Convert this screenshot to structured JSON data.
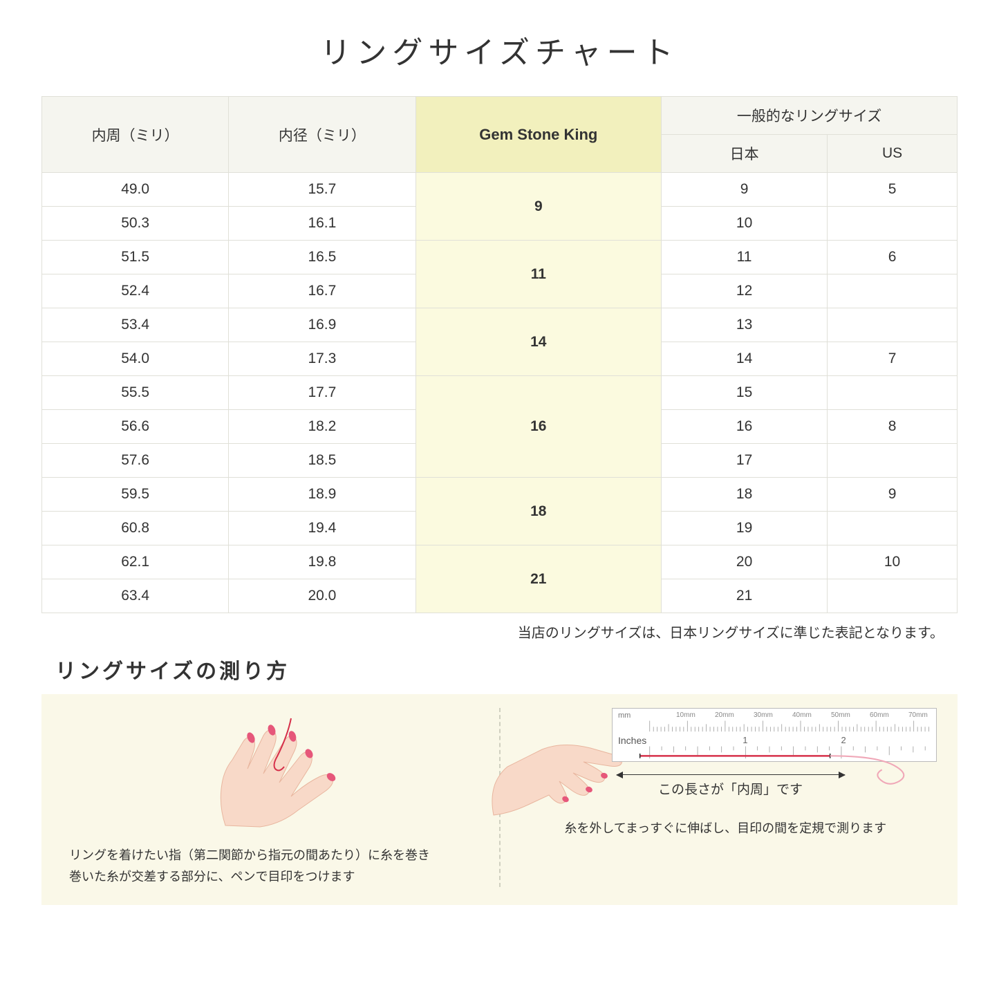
{
  "title": "リングサイズチャート",
  "headers": {
    "circumference": "内周（ミリ）",
    "diameter": "内径（ミリ）",
    "gsk": "Gem Stone King",
    "general": "一般的なリングサイズ",
    "japan": "日本",
    "us": "US"
  },
  "groups": [
    {
      "gsk": "9",
      "rows": [
        {
          "c": "49.0",
          "d": "15.7",
          "jp": "9",
          "us": "5"
        },
        {
          "c": "50.3",
          "d": "16.1",
          "jp": "10",
          "us": ""
        }
      ]
    },
    {
      "gsk": "11",
      "rows": [
        {
          "c": "51.5",
          "d": "16.5",
          "jp": "11",
          "us": "6"
        },
        {
          "c": "52.4",
          "d": "16.7",
          "jp": "12",
          "us": ""
        }
      ]
    },
    {
      "gsk": "14",
      "rows": [
        {
          "c": "53.4",
          "d": "16.9",
          "jp": "13",
          "us": ""
        },
        {
          "c": "54.0",
          "d": "17.3",
          "jp": "14",
          "us": "7"
        }
      ]
    },
    {
      "gsk": "16",
      "rows": [
        {
          "c": "55.5",
          "d": "17.7",
          "jp": "15",
          "us": ""
        },
        {
          "c": "56.6",
          "d": "18.2",
          "jp": "16",
          "us": "8"
        },
        {
          "c": "57.6",
          "d": "18.5",
          "jp": "17",
          "us": ""
        }
      ]
    },
    {
      "gsk": "18",
      "rows": [
        {
          "c": "59.5",
          "d": "18.9",
          "jp": "18",
          "us": "9"
        },
        {
          "c": "60.8",
          "d": "19.4",
          "jp": "19",
          "us": ""
        }
      ]
    },
    {
      "gsk": "21",
      "rows": [
        {
          "c": "62.1",
          "d": "19.8",
          "jp": "20",
          "us": "10"
        },
        {
          "c": "63.4",
          "d": "20.0",
          "jp": "21",
          "us": ""
        }
      ]
    }
  ],
  "note": "当店のリングサイズは、日本リングサイズに準じた表記となります。",
  "howto": {
    "title": "リングサイズの測り方",
    "left_text": "リングを着けたい指（第二関節から指元の間あたり）に糸を巻き\n巻いた糸が交差する部分に、ペンで目印をつけます",
    "right_text": "糸を外してまっすぐに伸ばし、目印の間を定規で測ります",
    "measure_label": "この長さが「内周」です",
    "ruler_mm_label": "mm",
    "ruler_in_label": "Inches",
    "ruler_mm_marks": [
      "10mm",
      "20mm",
      "30mm",
      "40mm",
      "50mm",
      "60mm",
      "70mm"
    ],
    "ruler_in_marks": [
      "1",
      "2"
    ]
  },
  "colors": {
    "header_bg": "#f5f5ef",
    "gsk_header_bg": "#f2f0bd",
    "gsk_cell_bg": "#fbfadf",
    "border": "#e0e0d8",
    "howto_bg": "#faf8e8",
    "skin": "#f8d9c8",
    "skin_dark": "#e8b59e",
    "nail": "#e6577a",
    "thread": "#d6304a"
  }
}
